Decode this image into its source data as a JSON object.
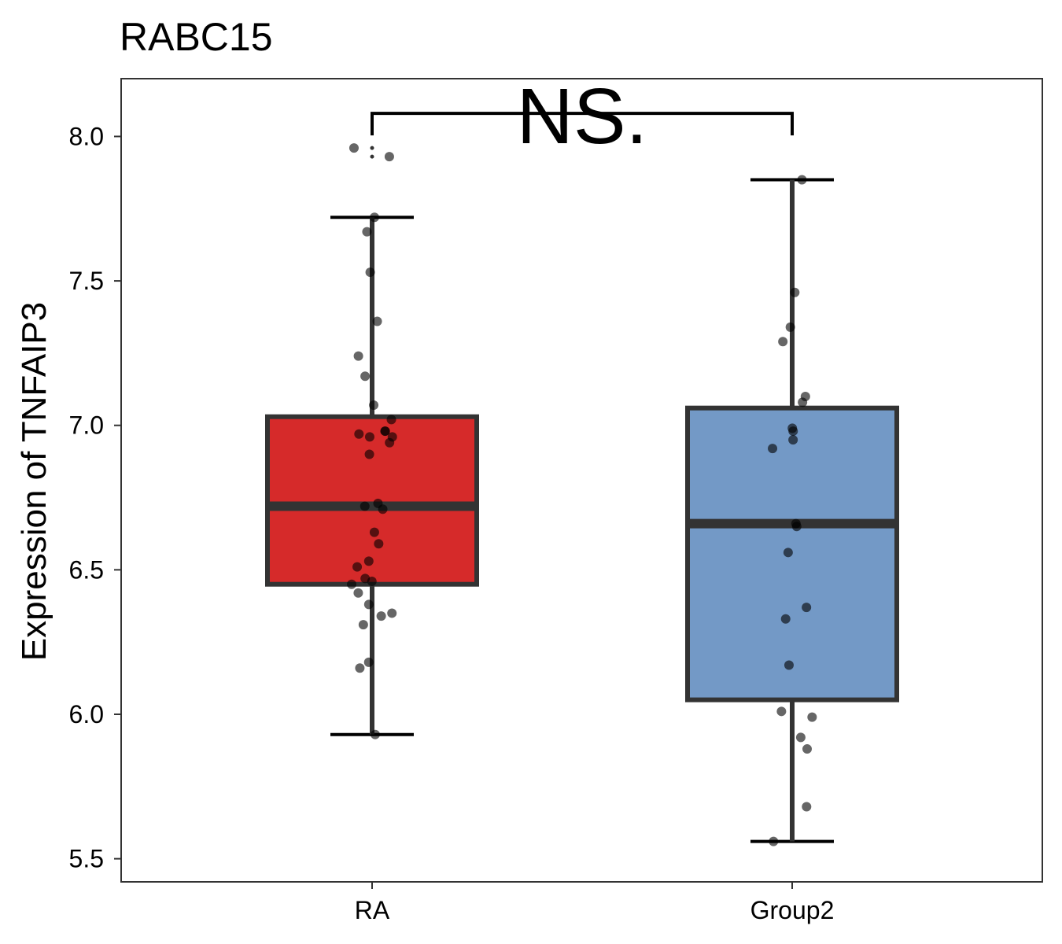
{
  "chart_data": {
    "type": "box",
    "title": "RABC15",
    "xlabel": "",
    "ylabel": "Expression of TNFAIP3",
    "ylim": [
      5.42,
      8.2
    ],
    "yticks": [
      5.5,
      6.0,
      6.5,
      7.0,
      7.5,
      8.0
    ],
    "ytick_labels": [
      "5.5",
      "6.0",
      "6.5",
      "7.0",
      "7.5",
      "8.0"
    ],
    "grid": false,
    "legend": "none",
    "categories": [
      "RA",
      "Group2"
    ],
    "boxes": [
      {
        "name": "RA",
        "color": "#d62a2a",
        "whisker_low": 5.93,
        "q1": 6.45,
        "median": 6.72,
        "q3": 7.03,
        "whisker_high": 7.72,
        "outliers": [
          7.93,
          7.96
        ],
        "points": [
          7.93,
          7.96,
          7.72,
          7.67,
          7.53,
          7.36,
          7.24,
          7.17,
          7.07,
          7.02,
          6.98,
          6.97,
          6.96,
          6.98,
          6.96,
          6.94,
          6.9,
          6.73,
          6.72,
          6.71,
          6.63,
          6.59,
          6.53,
          6.51,
          6.47,
          6.46,
          6.45,
          6.42,
          6.38,
          6.35,
          6.34,
          6.31,
          6.18,
          6.16,
          5.93
        ]
      },
      {
        "name": "Group2",
        "color": "#7399c6",
        "whisker_low": 5.56,
        "q1": 6.05,
        "median": 6.66,
        "q3": 7.06,
        "whisker_high": 7.85,
        "outliers": [],
        "points": [
          7.85,
          7.46,
          7.34,
          7.29,
          7.1,
          7.08,
          6.99,
          6.98,
          6.95,
          6.92,
          6.66,
          6.65,
          6.56,
          6.37,
          6.33,
          6.17,
          6.01,
          5.99,
          5.92,
          5.88,
          5.68,
          5.56
        ]
      }
    ],
    "comparison": {
      "groups": [
        "RA",
        "Group2"
      ],
      "label": "NS.",
      "y": 8.08
    }
  },
  "colors": {
    "box_outline": "#333333",
    "point_fill": "#000000",
    "panel_border": "#333333"
  }
}
